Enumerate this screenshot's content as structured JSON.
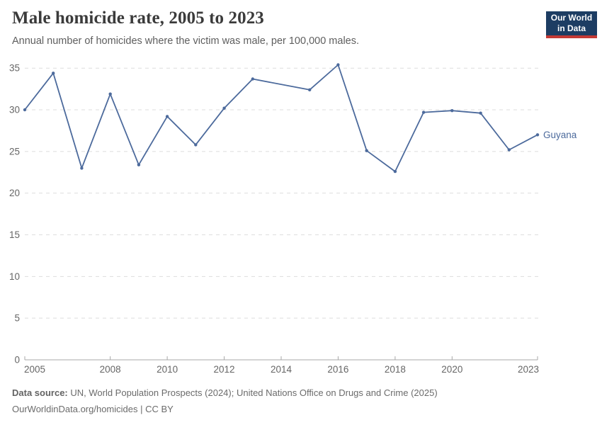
{
  "header": {
    "title": "Male homicide rate, 2005 to 2023",
    "subtitle": "Annual number of homicides where the victim was male, per 100,000 males.",
    "logo": {
      "line1": "Our World",
      "line2": "in Data"
    }
  },
  "chart_data": {
    "type": "line",
    "title": "Male homicide rate, 2005 to 2023",
    "xlabel": "",
    "ylabel": "",
    "xlim": [
      2005,
      2023
    ],
    "ylim": [
      0,
      35
    ],
    "grid": "horizontal-dashed",
    "legend_position": "end-of-line-label",
    "x_ticks": [
      2005,
      2008,
      2010,
      2012,
      2014,
      2016,
      2018,
      2020,
      2023
    ],
    "y_ticks": [
      0,
      5,
      10,
      15,
      20,
      25,
      30,
      35
    ],
    "series": [
      {
        "name": "Guyana",
        "color": "#4C6A9C",
        "points": [
          {
            "year": 2005,
            "value": 30.0
          },
          {
            "year": 2006,
            "value": 34.4
          },
          {
            "year": 2007,
            "value": 23.0
          },
          {
            "year": 2008,
            "value": 31.9
          },
          {
            "year": 2009,
            "value": 23.4
          },
          {
            "year": 2010,
            "value": 29.2
          },
          {
            "year": 2011,
            "value": 25.8
          },
          {
            "year": 2012,
            "value": 30.2
          },
          {
            "year": 2013,
            "value": 33.7
          },
          {
            "year": 2014,
            "value": null
          },
          {
            "year": 2015,
            "value": 32.4
          },
          {
            "year": 2016,
            "value": 35.4
          },
          {
            "year": 2017,
            "value": 25.1
          },
          {
            "year": 2018,
            "value": 22.6
          },
          {
            "year": 2019,
            "value": 29.7
          },
          {
            "year": 2020,
            "value": 29.9
          },
          {
            "year": 2021,
            "value": 29.6
          },
          {
            "year": 2022,
            "value": 25.2
          },
          {
            "year": 2023,
            "value": 27.0
          }
        ]
      }
    ]
  },
  "footer": {
    "source_label": "Data source:",
    "source_text": " UN, World Population Prospects (2024); United Nations Office on Drugs and Crime (2025)",
    "license_text": "OurWorldinData.org/homicides | CC BY"
  },
  "colors": {
    "line": "#4C6A9C",
    "gridline": "#dddddd",
    "axis": "#a8a8a8",
    "tick_label": "#666666",
    "logo_bg": "#1d3d63",
    "logo_accent": "#c43a35"
  }
}
